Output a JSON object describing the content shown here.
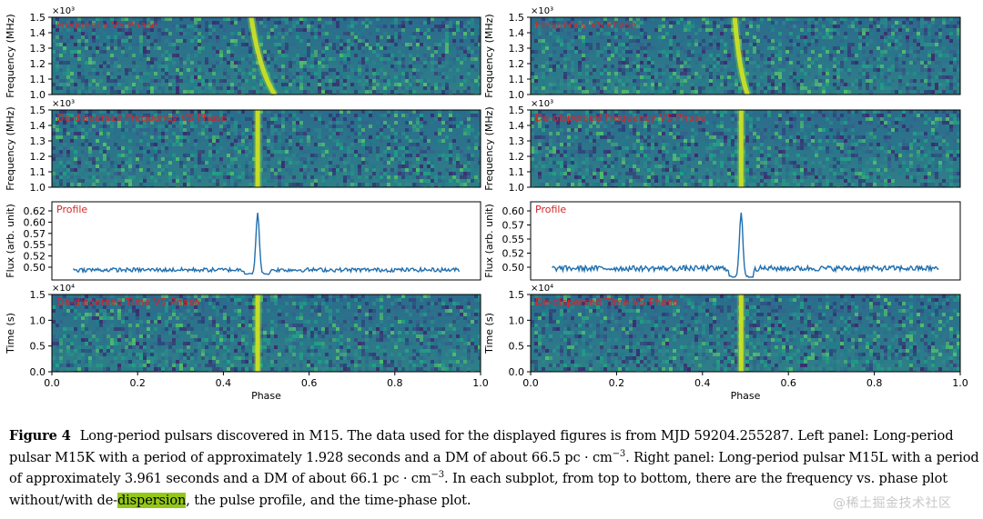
{
  "figure": {
    "colors": {
      "heatmap_lo": "#2a1f5e",
      "heatmap_mid": "#26858a",
      "heatmap_hi": "#e4e51b",
      "profile_line": "#1f6faf",
      "panel_label": "#d62728"
    },
    "x_label": "Phase",
    "x_ticks": [
      "0.0",
      "0.2",
      "0.4",
      "0.6",
      "0.8",
      "1.0"
    ],
    "freq_ticks": [
      "1.0",
      "1.1",
      "1.2",
      "1.3",
      "1.4",
      "1.5"
    ],
    "time_ticks": [
      "0.0",
      "0.5",
      "1.0",
      "1.5"
    ]
  },
  "chart_data": [
    {
      "type": "heatmap",
      "panel": "left-1",
      "title": "Frequency VS Phase",
      "xlabel": "Phase",
      "ylabel": "Frequency (MHz)",
      "y_multiplier": "×10³",
      "xlim": [
        0.0,
        1.0
      ],
      "ylim": [
        1.0,
        1.5
      ],
      "pulse_phase_at_top": 0.465,
      "pulse_phase_at_bottom": 0.52
    },
    {
      "type": "heatmap",
      "panel": "left-2",
      "title": "De-dispersed Frequency VS Phase",
      "xlabel": "Phase",
      "ylabel": "Frequency (MHz)",
      "y_multiplier": "×10³",
      "xlim": [
        0.0,
        1.0
      ],
      "ylim": [
        1.0,
        1.5
      ],
      "pulse_phase": 0.48
    },
    {
      "type": "line",
      "panel": "left-3",
      "title": "Profile",
      "xlabel": "Phase",
      "ylabel": "Flux (arb. unit)",
      "xlim": [
        0.0,
        1.0
      ],
      "ylim": [
        0.485,
        0.64
      ],
      "yticks": [
        "0.50",
        "0.52",
        "0.55",
        "0.57",
        "0.60",
        "0.62"
      ],
      "x_range": [
        0.05,
        0.95
      ],
      "baseline": 0.505,
      "dip_min": 0.497,
      "peak_phase": 0.48,
      "peak_value": 0.625
    },
    {
      "type": "heatmap",
      "panel": "left-4",
      "title": "De-dispersed Time VS Phase",
      "xlabel": "Phase",
      "ylabel": "Time (s)",
      "y_multiplier": "×10⁴",
      "xlim": [
        0.0,
        1.0
      ],
      "ylim": [
        0.0,
        1.7
      ],
      "pulse_phase": 0.48
    },
    {
      "type": "heatmap",
      "panel": "right-1",
      "title": "Frequency VS Phase",
      "xlabel": "Phase",
      "ylabel": "Frequency (MHz)",
      "y_multiplier": "×10³",
      "xlim": [
        0.0,
        1.0
      ],
      "ylim": [
        1.0,
        1.5
      ],
      "pulse_phase_at_top": 0.475,
      "pulse_phase_at_bottom": 0.505
    },
    {
      "type": "heatmap",
      "panel": "right-2",
      "title": "De-dispersed Frequency VS Phase",
      "xlabel": "Phase",
      "ylabel": "Frequency (MHz)",
      "y_multiplier": "×10³",
      "xlim": [
        0.0,
        1.0
      ],
      "ylim": [
        1.0,
        1.5
      ],
      "pulse_phase": 0.49
    },
    {
      "type": "line",
      "panel": "right-3",
      "title": "Profile",
      "xlabel": "Phase",
      "ylabel": "Flux (arb. unit)",
      "xlim": [
        0.0,
        1.0
      ],
      "ylim": [
        0.49,
        0.605
      ],
      "yticks": [
        "0.50",
        "0.52",
        "0.55",
        "0.57",
        "0.60"
      ],
      "x_range": [
        0.05,
        0.95
      ],
      "baseline": 0.507,
      "dip_min": 0.495,
      "peak_phase": 0.49,
      "peak_value": 0.6
    },
    {
      "type": "heatmap",
      "panel": "right-4",
      "title": "De-dispersed Time VS Phase",
      "xlabel": "Phase",
      "ylabel": "Time (s)",
      "y_multiplier": "×10⁴",
      "xlim": [
        0.0,
        1.0
      ],
      "ylim": [
        0.0,
        1.7
      ],
      "pulse_phase": 0.49
    }
  ],
  "caption": {
    "label": "Figure 4",
    "part1": "Long-period pulsars discovered in M15. The data used for the displayed figures is from MJD 59204.255287. Left panel: Long-period pulsar M15K with a period of approximately 1.928 seconds and a DM of about 66.5 pc · cm",
    "exp1": "−3",
    "part2": ". Right panel: Long-period pulsar M15L with a period of approximately 3.961 seconds and a DM of about 66.1 pc · cm",
    "exp2": "−3",
    "part3": ". In each subplot, from top to bottom, there are the frequency vs. phase plot without/with de-",
    "highlight": "dispersion",
    "part4": ", the pulse profile, and the time-phase plot."
  },
  "watermark": "@稀土掘金技术社区"
}
